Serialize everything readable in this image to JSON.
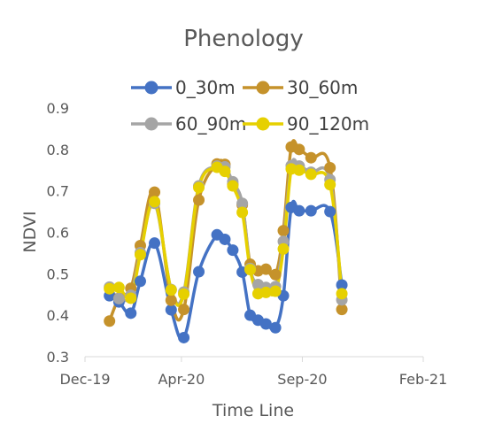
{
  "chart_data": {
    "type": "line",
    "title": "Phenology",
    "xlabel": "Time Line",
    "ylabel": "NDVI",
    "ylim": [
      0.3,
      0.9
    ],
    "yticks": [
      "0.3",
      "0.4",
      "0.5",
      "0.6",
      "0.7",
      "0.8",
      "0.9"
    ],
    "xlim": [
      "2019-12-01",
      "2021-02-01"
    ],
    "xticks": [
      {
        "label": "Dec-19",
        "date": "2019-12-01"
      },
      {
        "label": "Apr-20",
        "date": "2020-04-01"
      },
      {
        "label": "Sep-20",
        "date": "2020-09-01"
      },
      {
        "label": "Feb-21",
        "date": "2021-02-01"
      }
    ],
    "grid": false,
    "legend_position": "top",
    "x": [
      "2020-01-01",
      "2020-01-13",
      "2020-01-28",
      "2020-02-09",
      "2020-02-27",
      "2020-03-19",
      "2020-04-04",
      "2020-04-23",
      "2020-05-16",
      "2020-05-26",
      "2020-06-05",
      "2020-06-17",
      "2020-06-27",
      "2020-07-07",
      "2020-07-17",
      "2020-07-29",
      "2020-08-08",
      "2020-08-18",
      "2020-08-28",
      "2020-09-12",
      "2020-10-06",
      "2020-10-21"
    ],
    "series": [
      {
        "name": "0_30m",
        "color": "#4472C4",
        "values": [
          0.447,
          0.432,
          0.405,
          0.482,
          0.574,
          0.413,
          0.346,
          0.505,
          0.594,
          0.583,
          0.557,
          0.504,
          0.4,
          0.388,
          0.379,
          0.37,
          0.447,
          0.66,
          0.652,
          0.652,
          0.65,
          0.473
        ]
      },
      {
        "name": "30_60m",
        "color": "#C5922B",
        "values": [
          0.386,
          0.441,
          0.465,
          0.568,
          0.697,
          0.436,
          0.414,
          0.678,
          0.765,
          0.764,
          0.716,
          0.666,
          0.523,
          0.507,
          0.511,
          0.498,
          0.604,
          0.806,
          0.8,
          0.78,
          0.756,
          0.414
        ]
      },
      {
        "name": "60_90m",
        "color": "#A5A5A5",
        "values": [
          0.468,
          0.44,
          0.448,
          0.551,
          0.67,
          0.462,
          0.456,
          0.712,
          0.76,
          0.758,
          0.722,
          0.67,
          0.513,
          0.474,
          0.467,
          0.469,
          0.578,
          0.761,
          0.76,
          0.745,
          0.727,
          0.437
        ]
      },
      {
        "name": "90_120m",
        "color": "#E6D000",
        "values": [
          0.464,
          0.467,
          0.441,
          0.546,
          0.674,
          0.461,
          0.451,
          0.708,
          0.757,
          0.747,
          0.712,
          0.648,
          0.51,
          0.452,
          0.455,
          0.458,
          0.56,
          0.753,
          0.75,
          0.74,
          0.715,
          0.452
        ]
      }
    ]
  }
}
